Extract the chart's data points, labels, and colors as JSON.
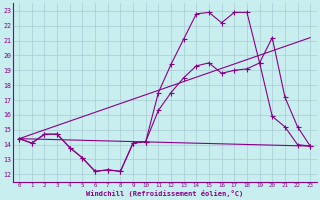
{
  "xlabel": "Windchill (Refroidissement éolien,°C)",
  "background_color": "#c8eef0",
  "grid_color": "#aaccd4",
  "line_color": "#880088",
  "xlim": [
    -0.5,
    23.5
  ],
  "ylim": [
    11.5,
    23.5
  ],
  "xticks": [
    0,
    1,
    2,
    3,
    4,
    5,
    6,
    7,
    8,
    9,
    10,
    11,
    12,
    13,
    14,
    15,
    16,
    17,
    18,
    19,
    20,
    21,
    22,
    23
  ],
  "yticks": [
    12,
    13,
    14,
    15,
    16,
    17,
    18,
    19,
    20,
    21,
    22,
    23
  ],
  "line1_x": [
    0,
    1,
    2,
    3,
    4,
    5,
    6,
    7,
    8,
    9,
    10,
    11,
    12,
    13,
    14,
    15,
    16,
    17,
    18,
    19,
    20,
    21,
    22,
    23
  ],
  "line1_y": [
    14.4,
    14.1,
    14.7,
    14.7,
    13.8,
    13.1,
    12.2,
    12.3,
    12.2,
    14.1,
    14.2,
    17.5,
    19.4,
    21.1,
    22.8,
    22.9,
    22.2,
    22.9,
    22.9,
    19.5,
    21.2,
    17.2,
    15.2,
    13.9
  ],
  "line2_x": [
    0,
    1,
    2,
    3,
    4,
    5,
    6,
    7,
    8,
    9,
    10,
    11,
    12,
    13,
    14,
    15,
    16,
    17,
    18,
    19,
    20,
    21,
    22,
    23
  ],
  "line2_y": [
    14.4,
    14.1,
    14.7,
    14.7,
    13.8,
    13.1,
    12.2,
    12.3,
    12.2,
    14.1,
    14.2,
    16.3,
    17.5,
    18.5,
    19.3,
    19.5,
    18.8,
    19.0,
    19.1,
    19.5,
    15.9,
    15.2,
    14.0,
    13.9
  ],
  "line3_x": [
    0,
    23
  ],
  "line3_y": [
    14.4,
    21.2
  ],
  "line4_x": [
    0,
    23
  ],
  "line4_y": [
    14.4,
    13.9
  ]
}
